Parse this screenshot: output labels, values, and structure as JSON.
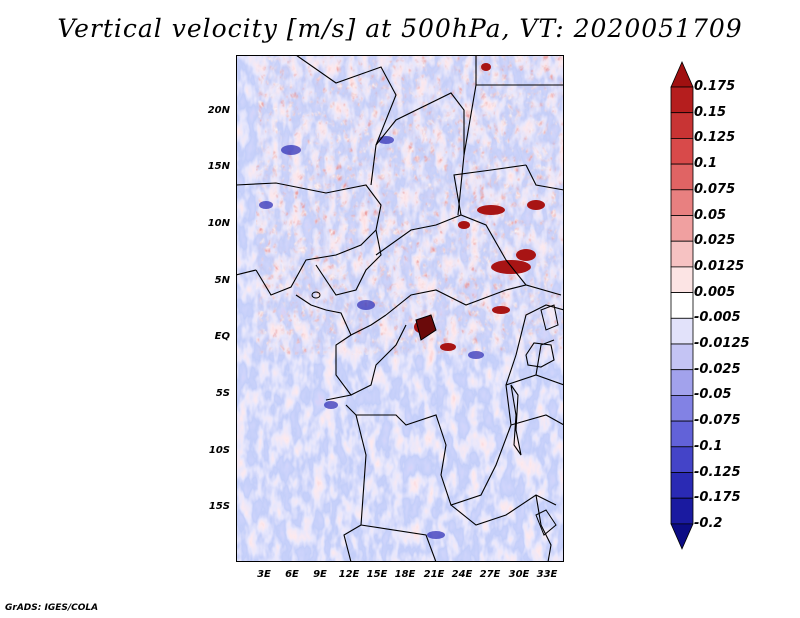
{
  "title": "Vertical velocity [m/s] at 500hPa, VT: 2020051709",
  "credit": "GrADS: IGES/COLA",
  "map": {
    "variable": "Vertical velocity",
    "units": "m/s",
    "level": "500hPa",
    "valid_time": "2020051709",
    "lat_labels": [
      "20N",
      "15N",
      "10N",
      "5N",
      "EQ",
      "5S",
      "10S",
      "15S"
    ],
    "lon_labels": [
      "3E",
      "6E",
      "9E",
      "12E",
      "15E",
      "18E",
      "21E",
      "24E",
      "27E",
      "30E",
      "33E"
    ]
  },
  "colorbar": {
    "labels": [
      "0.175",
      "0.15",
      "0.125",
      "0.1",
      "0.075",
      "0.05",
      "0.025",
      "0.0125",
      "0.005",
      "-0.005",
      "-0.0125",
      "-0.025",
      "-0.05",
      "-0.075",
      "-0.1",
      "-0.125",
      "-0.175",
      "-0.2"
    ],
    "colors": [
      "#a01010",
      "#b51e1e",
      "#c83434",
      "#d84a4a",
      "#e06464",
      "#e88080",
      "#f0a0a0",
      "#f6c2c2",
      "#fce4e4",
      "#ffffff",
      "#e2e2fa",
      "#c4c4f4",
      "#a2a2ec",
      "#8282e4",
      "#6262d8",
      "#4444c8",
      "#2a2ab4",
      "#1a1aa0",
      "#0c0c84"
    ]
  },
  "colors": {
    "background": "#ffffff",
    "border": "#000000"
  }
}
